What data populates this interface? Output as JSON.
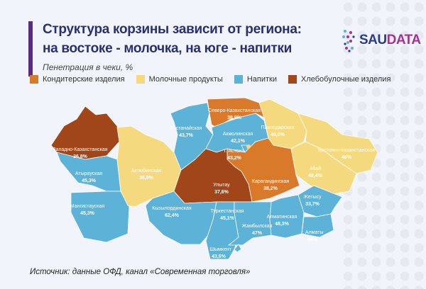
{
  "header": {
    "title_line1": "Структура корзины зависит от региона:",
    "title_line2": "на востоке - молочка, на юге - напитки",
    "subtitle": "Пенетрация в чеки, %"
  },
  "logo": {
    "part1": "SAU",
    "part2": "DATA"
  },
  "legend": [
    {
      "label": "Кондитерские изделия",
      "color": "#d97a2b"
    },
    {
      "label": "Молочные продукты",
      "color": "#f5d97e"
    },
    {
      "label": "Напитки",
      "color": "#5db2d8"
    },
    {
      "label": "Хлебобулочные изделия",
      "color": "#a04619"
    }
  ],
  "regions": [
    {
      "name": "Западно-Казахстанская",
      "value": "36,8%",
      "category": 3
    },
    {
      "name": "Атырауская",
      "value": "45,3%",
      "category": 2
    },
    {
      "name": "Мангистауская",
      "value": "45,3%",
      "category": 2
    },
    {
      "name": "Актюбинская",
      "value": "36,9%",
      "category": 1
    },
    {
      "name": "Костанайская",
      "value": "43,7%",
      "category": 2
    },
    {
      "name": "Северо-Казахстанская",
      "value": "38,9%",
      "category": 0
    },
    {
      "name": "Акмолинская",
      "value": "42,1%",
      "category": 2
    },
    {
      "name": "г. Астана",
      "value": "43,2%",
      "category": 2
    },
    {
      "name": "Павлодарская",
      "value": "40,5%",
      "category": 1
    },
    {
      "name": "Восточно-Казахстанская",
      "value": "46%",
      "category": 1
    },
    {
      "name": "Абай",
      "value": "48,4%",
      "category": 1
    },
    {
      "name": "Карагандинская",
      "value": "38,2%",
      "category": 0
    },
    {
      "name": "Улытау",
      "value": "37,6%",
      "category": 3
    },
    {
      "name": "Кызылординская",
      "value": "62,4%",
      "category": 2
    },
    {
      "name": "Туркестанская",
      "value": "45,1%",
      "category": 2
    },
    {
      "name": "Жамбылская",
      "value": "47%",
      "category": 2
    },
    {
      "name": "Алматинская",
      "value": "48,3%",
      "category": 2
    },
    {
      "name": "Жетысу",
      "value": "33,7%",
      "category": 2
    },
    {
      "name": "г. Алматы",
      "value": "44%",
      "category": 2
    },
    {
      "name": "г. Шымкент",
      "value": "43,6%",
      "category": 2
    }
  ],
  "source": "Источник: данные ОФД, канал «Современная торговля»"
}
